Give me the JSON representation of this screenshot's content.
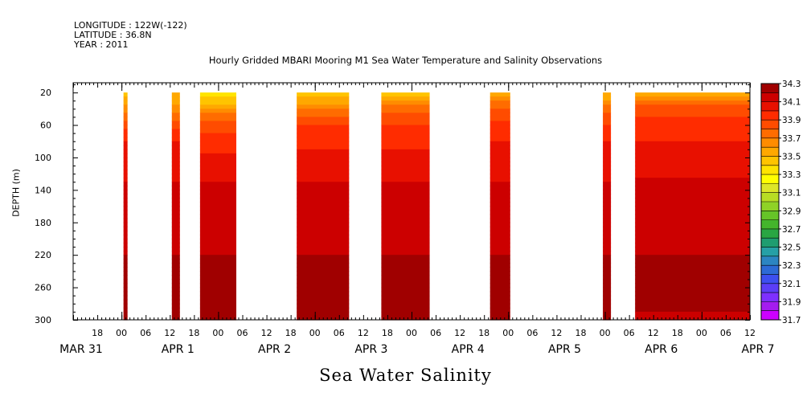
{
  "header": {
    "longitude": "LONGITUDE : 122W(-122)",
    "latitude": "LATITUDE : 36.8N",
    "year": "YEAR : 2011"
  },
  "chart_data": {
    "type": "heatmap",
    "title": "Hourly Gridded MBARI Mooring M1 Sea Water Temperature and Salinity Observations",
    "bottom_title": "Sea Water Salinity",
    "ylabel": "DEPTH (m)",
    "xlabel": "",
    "xlim_hours_from_mar31_00": [
      12,
      180
    ],
    "ylim": [
      300,
      8
    ],
    "y_inverted": true,
    "y_ticks": [
      20,
      60,
      100,
      140,
      180,
      220,
      260,
      300
    ],
    "x_tick_labels": [
      {
        "t": 18,
        "label": "18"
      },
      {
        "t": 24,
        "label": "00"
      },
      {
        "t": 30,
        "label": "06"
      },
      {
        "t": 36,
        "label": "12"
      },
      {
        "t": 42,
        "label": "18"
      },
      {
        "t": 48,
        "label": "00"
      },
      {
        "t": 54,
        "label": "06"
      },
      {
        "t": 60,
        "label": "12"
      },
      {
        "t": 66,
        "label": "18"
      },
      {
        "t": 72,
        "label": "00"
      },
      {
        "t": 78,
        "label": "06"
      },
      {
        "t": 84,
        "label": "12"
      },
      {
        "t": 90,
        "label": "18"
      },
      {
        "t": 96,
        "label": "00"
      },
      {
        "t": 102,
        "label": "06"
      },
      {
        "t": 108,
        "label": "12"
      },
      {
        "t": 114,
        "label": "18"
      },
      {
        "t": 120,
        "label": "00"
      },
      {
        "t": 126,
        "label": "06"
      },
      {
        "t": 132,
        "label": "12"
      },
      {
        "t": 138,
        "label": "18"
      },
      {
        "t": 144,
        "label": "00"
      },
      {
        "t": 150,
        "label": "06"
      },
      {
        "t": 156,
        "label": "12"
      },
      {
        "t": 162,
        "label": "18"
      },
      {
        "t": 168,
        "label": "00"
      },
      {
        "t": 174,
        "label": "06"
      },
      {
        "t": 180,
        "label": "12"
      }
    ],
    "day_labels": [
      {
        "t": 14,
        "label": "MAR 31"
      },
      {
        "t": 38,
        "label": "APR  1"
      },
      {
        "t": 62,
        "label": "APR  2"
      },
      {
        "t": 86,
        "label": "APR  3"
      },
      {
        "t": 110,
        "label": "APR  4"
      },
      {
        "t": 134,
        "label": "APR  5"
      },
      {
        "t": 158,
        "label": "APR  6"
      },
      {
        "t": 182,
        "label": "APR  7"
      }
    ],
    "colorbar": {
      "min": 31.7,
      "max": 34.3,
      "step": 0.1,
      "labels": [
        "34.3",
        "34.1",
        "33.9",
        "33.7",
        "33.5",
        "33.3",
        "33.1",
        "32.9",
        "32.7",
        "32.5",
        "32.3",
        "32.1",
        "31.9",
        "31.7"
      ],
      "colors_low_to_high": [
        "#cc00ff",
        "#a41cf0",
        "#7e30ff",
        "#5b3ef7",
        "#3d4ff0",
        "#2d6ad6",
        "#2c85c2",
        "#26a0a6",
        "#1f9d70",
        "#29a643",
        "#44b52c",
        "#66c428",
        "#8fd226",
        "#b8dd24",
        "#dde628",
        "#ffff00",
        "#ffe400",
        "#ffc400",
        "#ffa800",
        "#ff8c00",
        "#ff6c00",
        "#ff4c00",
        "#ff2c00",
        "#e81000",
        "#cc0000",
        "#a00000"
      ]
    },
    "series": [
      {
        "t_start": 24.5,
        "t_end": 25.5,
        "profile": [
          [
            20,
            33.45
          ],
          [
            40,
            33.65
          ],
          [
            60,
            33.85
          ],
          [
            80,
            34.0
          ],
          [
            100,
            34.05
          ],
          [
            140,
            34.12
          ],
          [
            200,
            34.17
          ],
          [
            230,
            34.22
          ],
          [
            260,
            34.22
          ],
          [
            300,
            34.2
          ]
        ]
      },
      {
        "t_start": 36.5,
        "t_end": 38.5,
        "profile": [
          [
            20,
            33.5
          ],
          [
            40,
            33.65
          ],
          [
            60,
            33.85
          ],
          [
            80,
            34.0
          ],
          [
            100,
            34.05
          ],
          [
            140,
            34.12
          ],
          [
            200,
            34.16
          ],
          [
            230,
            34.22
          ],
          [
            260,
            34.22
          ],
          [
            300,
            34.2
          ]
        ]
      },
      {
        "t_start": 43.5,
        "t_end": 52.5,
        "profile": [
          [
            20,
            33.25
          ],
          [
            30,
            33.45
          ],
          [
            40,
            33.55
          ],
          [
            50,
            33.75
          ],
          [
            60,
            33.85
          ],
          [
            80,
            33.95
          ],
          [
            100,
            34.02
          ],
          [
            140,
            34.12
          ],
          [
            200,
            34.16
          ],
          [
            230,
            34.22
          ],
          [
            260,
            34.22
          ],
          [
            300,
            34.2
          ]
        ]
      },
      {
        "t_start": 67.5,
        "t_end": 80.5,
        "profile": [
          [
            20,
            33.35
          ],
          [
            30,
            33.55
          ],
          [
            40,
            33.7
          ],
          [
            60,
            33.9
          ],
          [
            80,
            33.98
          ],
          [
            100,
            34.03
          ],
          [
            140,
            34.13
          ],
          [
            200,
            34.17
          ],
          [
            230,
            34.22
          ],
          [
            260,
            34.22
          ],
          [
            300,
            34.2
          ]
        ]
      },
      {
        "t_start": 88.5,
        "t_end": 100.5,
        "profile": [
          [
            20,
            33.45
          ],
          [
            30,
            33.6
          ],
          [
            40,
            33.75
          ],
          [
            60,
            33.92
          ],
          [
            80,
            33.98
          ],
          [
            100,
            34.03
          ],
          [
            140,
            34.13
          ],
          [
            200,
            34.17
          ],
          [
            230,
            34.22
          ],
          [
            260,
            34.22
          ],
          [
            300,
            34.2
          ]
        ]
      },
      {
        "t_start": 115.5,
        "t_end": 120.5,
        "profile": [
          [
            20,
            33.55
          ],
          [
            40,
            33.8
          ],
          [
            60,
            33.92
          ],
          [
            80,
            34.0
          ],
          [
            100,
            34.04
          ],
          [
            140,
            34.12
          ],
          [
            200,
            34.17
          ],
          [
            230,
            34.22
          ],
          [
            260,
            34.22
          ],
          [
            300,
            34.2
          ]
        ]
      },
      {
        "t_start": 143.5,
        "t_end": 145.5,
        "profile": [
          [
            20,
            33.5
          ],
          [
            40,
            33.75
          ],
          [
            60,
            33.9
          ],
          [
            80,
            34.0
          ],
          [
            100,
            34.05
          ],
          [
            140,
            34.12
          ],
          [
            200,
            34.17
          ],
          [
            230,
            34.22
          ],
          [
            260,
            34.22
          ],
          [
            300,
            34.2
          ]
        ]
      },
      {
        "t_start": 151.5,
        "t_end": 180.0,
        "profile": [
          [
            20,
            33.5
          ],
          [
            30,
            33.7
          ],
          [
            40,
            33.85
          ],
          [
            60,
            33.95
          ],
          [
            80,
            34.0
          ],
          [
            100,
            34.04
          ],
          [
            140,
            34.13
          ],
          [
            200,
            34.17
          ],
          [
            230,
            34.22
          ],
          [
            260,
            34.22
          ],
          [
            290,
            34.2
          ],
          [
            300,
            34.18
          ]
        ]
      }
    ]
  }
}
